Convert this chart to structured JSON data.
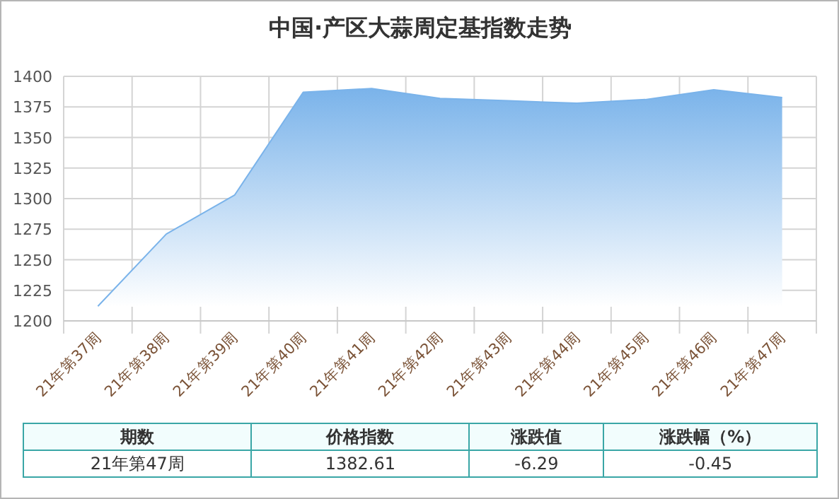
{
  "chart_data": {
    "type": "area",
    "title": "中国·产区大蒜周定基指数走势",
    "categories": [
      "21年第37周",
      "21年第38周",
      "21年第39周",
      "21年第40周",
      "21年第41周",
      "21年第42周",
      "21年第43周",
      "21年第44周",
      "21年第45周",
      "21年第46周",
      "21年第47周"
    ],
    "values": [
      1212,
      1271,
      1303,
      1387,
      1390,
      1382,
      1380,
      1378,
      1381,
      1389,
      1382.61
    ],
    "color": "#7ab3ea",
    "ylim": [
      1200,
      1400
    ],
    "yticks": [
      1200,
      1225,
      1250,
      1275,
      1300,
      1325,
      1350,
      1375,
      1400
    ],
    "grid": true,
    "annotations": [
      "期数",
      "价格指数",
      "涨跌值",
      "涨跌幅（%）",
      "21年第47周",
      "1382.61",
      "-6.29",
      "-0.45"
    ]
  }
}
